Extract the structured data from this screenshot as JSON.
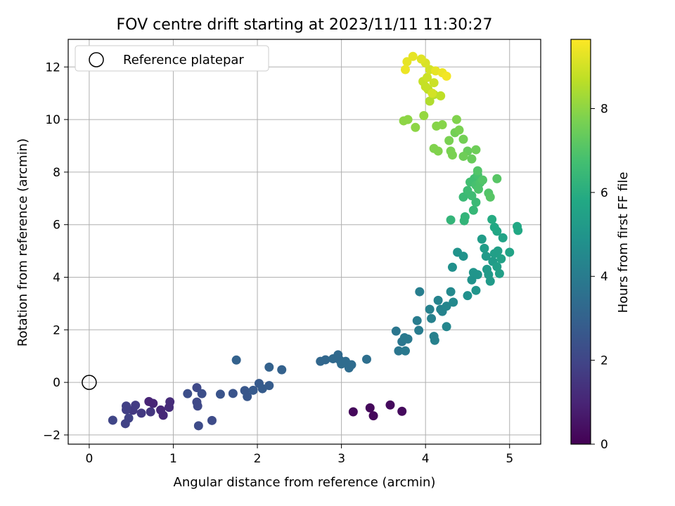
{
  "chart_data": {
    "type": "scatter",
    "title": "FOV centre drift starting at 2023/11/11 11:30:27",
    "xlabel": "Angular distance from reference (arcmin)",
    "ylabel": "Rotation from reference (arcmin)",
    "xlim": [
      -0.25,
      5.37
    ],
    "ylim": [
      -2.35,
      13.05
    ],
    "x_ticks": [
      0,
      1,
      2,
      3,
      4,
      5
    ],
    "x_tick_labels": [
      "0",
      "1",
      "2",
      "3",
      "4",
      "5"
    ],
    "y_ticks": [
      -2,
      0,
      2,
      4,
      6,
      8,
      10,
      12
    ],
    "y_tick_labels": [
      "−2",
      "0",
      "2",
      "4",
      "6",
      "8",
      "10",
      "12"
    ],
    "grid": true,
    "legend": {
      "placement": "upper-left",
      "entries": [
        {
          "label": "Reference platepar",
          "marker": "open-circle"
        }
      ]
    },
    "colorbar": {
      "label": "Hours from first FF file",
      "colormap": "viridis",
      "range": [
        0,
        9.65
      ],
      "ticks": [
        0,
        2,
        4,
        6,
        8
      ],
      "tick_labels": [
        "0",
        "2",
        "4",
        "6",
        "8"
      ]
    },
    "reference_point": {
      "x": 0,
      "y": 0
    },
    "points": [
      {
        "x": 3.14,
        "y": -1.12,
        "h": 0.2
      },
      {
        "x": 3.34,
        "y": -0.97,
        "h": 0.2
      },
      {
        "x": 3.38,
        "y": -1.27,
        "h": 0.2
      },
      {
        "x": 3.58,
        "y": -0.86,
        "h": 0.25
      },
      {
        "x": 3.72,
        "y": -1.1,
        "h": 0.25
      },
      {
        "x": 0.71,
        "y": -0.73,
        "h": 1.0
      },
      {
        "x": 0.76,
        "y": -0.8,
        "h": 1.0
      },
      {
        "x": 0.85,
        "y": -1.05,
        "h": 1.1
      },
      {
        "x": 0.88,
        "y": -1.25,
        "h": 1.1
      },
      {
        "x": 0.95,
        "y": -0.95,
        "h": 1.2
      },
      {
        "x": 0.96,
        "y": -0.74,
        "h": 1.2
      },
      {
        "x": 0.73,
        "y": -1.12,
        "h": 1.5
      },
      {
        "x": 0.62,
        "y": -1.17,
        "h": 1.6
      },
      {
        "x": 0.52,
        "y": -1.06,
        "h": 1.6
      },
      {
        "x": 0.55,
        "y": -0.87,
        "h": 1.7
      },
      {
        "x": 0.44,
        "y": -1.04,
        "h": 1.8
      },
      {
        "x": 0.44,
        "y": -0.9,
        "h": 1.8
      },
      {
        "x": 0.47,
        "y": -1.36,
        "h": 1.9
      },
      {
        "x": 0.43,
        "y": -1.57,
        "h": 1.9
      },
      {
        "x": 0.28,
        "y": -1.44,
        "h": 2.0
      },
      {
        "x": 1.28,
        "y": -0.2,
        "h": 2.1
      },
      {
        "x": 1.28,
        "y": -0.75,
        "h": 2.1
      },
      {
        "x": 1.29,
        "y": -0.9,
        "h": 2.1
      },
      {
        "x": 1.3,
        "y": -1.65,
        "h": 2.2
      },
      {
        "x": 1.46,
        "y": -1.45,
        "h": 2.2
      },
      {
        "x": 1.34,
        "y": -0.43,
        "h": 2.3
      },
      {
        "x": 1.17,
        "y": -0.43,
        "h": 2.3
      },
      {
        "x": 1.56,
        "y": -0.45,
        "h": 2.5
      },
      {
        "x": 1.71,
        "y": -0.42,
        "h": 2.5
      },
      {
        "x": 1.85,
        "y": -0.31,
        "h": 2.6
      },
      {
        "x": 1.88,
        "y": -0.54,
        "h": 2.6
      },
      {
        "x": 1.95,
        "y": -0.3,
        "h": 2.7
      },
      {
        "x": 2.02,
        "y": -0.04,
        "h": 2.7
      },
      {
        "x": 2.06,
        "y": -0.24,
        "h": 2.8
      },
      {
        "x": 2.14,
        "y": -0.12,
        "h": 2.8
      },
      {
        "x": 2.14,
        "y": 0.58,
        "h": 3.0
      },
      {
        "x": 2.29,
        "y": 0.48,
        "h": 3.0
      },
      {
        "x": 1.75,
        "y": 0.85,
        "h": 3.0
      },
      {
        "x": 2.75,
        "y": 0.8,
        "h": 3.2
      },
      {
        "x": 2.81,
        "y": 0.86,
        "h": 3.2
      },
      {
        "x": 2.9,
        "y": 0.9,
        "h": 3.3
      },
      {
        "x": 2.96,
        "y": 1.05,
        "h": 3.3
      },
      {
        "x": 2.98,
        "y": 0.85,
        "h": 3.3
      },
      {
        "x": 3.0,
        "y": 0.7,
        "h": 3.4
      },
      {
        "x": 3.05,
        "y": 0.8,
        "h": 3.4
      },
      {
        "x": 3.09,
        "y": 0.55,
        "h": 3.4
      },
      {
        "x": 3.12,
        "y": 0.67,
        "h": 3.4
      },
      {
        "x": 3.3,
        "y": 0.88,
        "h": 3.5
      },
      {
        "x": 3.68,
        "y": 1.2,
        "h": 3.8
      },
      {
        "x": 3.72,
        "y": 1.55,
        "h": 3.8
      },
      {
        "x": 3.75,
        "y": 1.7,
        "h": 3.9
      },
      {
        "x": 3.79,
        "y": 1.65,
        "h": 3.9
      },
      {
        "x": 3.65,
        "y": 1.95,
        "h": 3.8
      },
      {
        "x": 3.9,
        "y": 2.35,
        "h": 4.0
      },
      {
        "x": 3.92,
        "y": 1.98,
        "h": 4.0
      },
      {
        "x": 3.76,
        "y": 1.2,
        "h": 3.9
      },
      {
        "x": 3.93,
        "y": 3.45,
        "h": 4.1
      },
      {
        "x": 4.05,
        "y": 2.78,
        "h": 4.2
      },
      {
        "x": 4.07,
        "y": 2.43,
        "h": 4.2
      },
      {
        "x": 4.1,
        "y": 1.75,
        "h": 4.2
      },
      {
        "x": 4.11,
        "y": 1.6,
        "h": 4.2
      },
      {
        "x": 4.15,
        "y": 3.12,
        "h": 4.3
      },
      {
        "x": 4.18,
        "y": 2.78,
        "h": 4.3
      },
      {
        "x": 4.2,
        "y": 2.7,
        "h": 4.3
      },
      {
        "x": 4.25,
        "y": 2.12,
        "h": 4.4
      },
      {
        "x": 4.25,
        "y": 2.9,
        "h": 4.4
      },
      {
        "x": 4.3,
        "y": 3.45,
        "h": 4.5
      },
      {
        "x": 4.33,
        "y": 3.05,
        "h": 4.5
      },
      {
        "x": 4.32,
        "y": 4.38,
        "h": 4.8
      },
      {
        "x": 4.38,
        "y": 4.95,
        "h": 4.9
      },
      {
        "x": 4.45,
        "y": 4.8,
        "h": 4.9
      },
      {
        "x": 4.5,
        "y": 3.3,
        "h": 4.8
      },
      {
        "x": 4.55,
        "y": 3.9,
        "h": 4.9
      },
      {
        "x": 4.57,
        "y": 4.18,
        "h": 5.0
      },
      {
        "x": 4.6,
        "y": 3.5,
        "h": 5.0
      },
      {
        "x": 4.62,
        "y": 4.1,
        "h": 5.0
      },
      {
        "x": 4.67,
        "y": 5.45,
        "h": 5.3
      },
      {
        "x": 4.7,
        "y": 5.1,
        "h": 5.3
      },
      {
        "x": 4.72,
        "y": 4.8,
        "h": 5.2
      },
      {
        "x": 4.73,
        "y": 4.3,
        "h": 5.2
      },
      {
        "x": 4.75,
        "y": 4.1,
        "h": 5.2
      },
      {
        "x": 4.77,
        "y": 3.85,
        "h": 5.2
      },
      {
        "x": 4.8,
        "y": 4.6,
        "h": 5.3
      },
      {
        "x": 4.82,
        "y": 4.9,
        "h": 5.4
      },
      {
        "x": 4.85,
        "y": 4.4,
        "h": 5.4
      },
      {
        "x": 4.86,
        "y": 5.0,
        "h": 5.4
      },
      {
        "x": 4.88,
        "y": 4.14,
        "h": 5.4
      },
      {
        "x": 4.9,
        "y": 4.7,
        "h": 5.5
      },
      {
        "x": 4.92,
        "y": 5.5,
        "h": 5.6
      },
      {
        "x": 5.0,
        "y": 4.95,
        "h": 5.6
      },
      {
        "x": 4.85,
        "y": 5.75,
        "h": 5.7
      },
      {
        "x": 4.82,
        "y": 5.9,
        "h": 5.8
      },
      {
        "x": 4.79,
        "y": 6.2,
        "h": 5.9
      },
      {
        "x": 5.09,
        "y": 5.93,
        "h": 5.8
      },
      {
        "x": 5.1,
        "y": 5.78,
        "h": 5.8
      },
      {
        "x": 4.3,
        "y": 6.18,
        "h": 6.3
      },
      {
        "x": 4.46,
        "y": 6.15,
        "h": 6.3
      },
      {
        "x": 4.47,
        "y": 6.3,
        "h": 6.3
      },
      {
        "x": 4.57,
        "y": 6.55,
        "h": 6.4
      },
      {
        "x": 4.6,
        "y": 6.85,
        "h": 6.5
      },
      {
        "x": 4.45,
        "y": 7.05,
        "h": 6.5
      },
      {
        "x": 4.5,
        "y": 7.3,
        "h": 6.6
      },
      {
        "x": 4.55,
        "y": 7.1,
        "h": 6.6
      },
      {
        "x": 4.53,
        "y": 7.62,
        "h": 6.7
      },
      {
        "x": 4.58,
        "y": 7.75,
        "h": 6.7
      },
      {
        "x": 4.6,
        "y": 7.5,
        "h": 6.8
      },
      {
        "x": 4.62,
        "y": 7.9,
        "h": 6.8
      },
      {
        "x": 4.65,
        "y": 7.6,
        "h": 6.9
      },
      {
        "x": 4.63,
        "y": 7.35,
        "h": 6.9
      },
      {
        "x": 4.68,
        "y": 7.7,
        "h": 7.0
      },
      {
        "x": 4.75,
        "y": 7.2,
        "h": 7.0
      },
      {
        "x": 4.77,
        "y": 7.05,
        "h": 7.1
      },
      {
        "x": 4.85,
        "y": 7.75,
        "h": 7.1
      },
      {
        "x": 4.62,
        "y": 8.05,
        "h": 7.0
      },
      {
        "x": 4.5,
        "y": 8.8,
        "h": 7.4
      },
      {
        "x": 4.55,
        "y": 8.5,
        "h": 7.4
      },
      {
        "x": 4.6,
        "y": 8.85,
        "h": 7.5
      },
      {
        "x": 4.45,
        "y": 8.6,
        "h": 7.5
      },
      {
        "x": 4.45,
        "y": 9.25,
        "h": 7.6
      },
      {
        "x": 4.35,
        "y": 9.5,
        "h": 7.6
      },
      {
        "x": 4.28,
        "y": 9.2,
        "h": 7.7
      },
      {
        "x": 4.3,
        "y": 8.8,
        "h": 7.7
      },
      {
        "x": 4.32,
        "y": 8.65,
        "h": 7.7
      },
      {
        "x": 4.4,
        "y": 9.6,
        "h": 7.7
      },
      {
        "x": 4.37,
        "y": 10.0,
        "h": 7.8
      },
      {
        "x": 4.1,
        "y": 8.9,
        "h": 7.8
      },
      {
        "x": 4.15,
        "y": 8.8,
        "h": 7.8
      },
      {
        "x": 4.2,
        "y": 9.8,
        "h": 7.9
      },
      {
        "x": 4.13,
        "y": 9.75,
        "h": 7.9
      },
      {
        "x": 3.74,
        "y": 9.95,
        "h": 8.0
      },
      {
        "x": 3.79,
        "y": 10.0,
        "h": 8.0
      },
      {
        "x": 3.88,
        "y": 9.7,
        "h": 8.0
      },
      {
        "x": 3.98,
        "y": 10.15,
        "h": 8.1
      },
      {
        "x": 4.05,
        "y": 10.7,
        "h": 8.5
      },
      {
        "x": 4.1,
        "y": 10.95,
        "h": 8.6
      },
      {
        "x": 4.18,
        "y": 10.9,
        "h": 8.7
      },
      {
        "x": 4.03,
        "y": 11.15,
        "h": 8.7
      },
      {
        "x": 4.0,
        "y": 11.25,
        "h": 8.8
      },
      {
        "x": 3.97,
        "y": 11.45,
        "h": 8.8
      },
      {
        "x": 4.1,
        "y": 11.4,
        "h": 8.9
      },
      {
        "x": 4.02,
        "y": 11.6,
        "h": 8.9
      },
      {
        "x": 4.05,
        "y": 11.9,
        "h": 9.0
      },
      {
        "x": 4.0,
        "y": 12.15,
        "h": 9.1
      },
      {
        "x": 3.95,
        "y": 12.3,
        "h": 9.2
      },
      {
        "x": 3.85,
        "y": 12.4,
        "h": 9.3
      },
      {
        "x": 3.78,
        "y": 12.2,
        "h": 9.3
      },
      {
        "x": 3.76,
        "y": 11.9,
        "h": 9.4
      },
      {
        "x": 4.12,
        "y": 11.85,
        "h": 9.3
      },
      {
        "x": 4.2,
        "y": 11.78,
        "h": 9.4
      },
      {
        "x": 4.25,
        "y": 11.65,
        "h": 9.5
      },
      {
        "x": 4.08,
        "y": 11.0,
        "h": 9.0
      }
    ]
  }
}
